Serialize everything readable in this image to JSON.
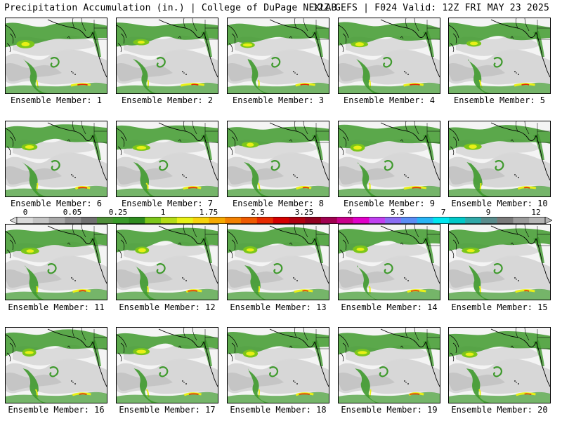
{
  "header": {
    "left_title": "Precipitation Accumulation (in.) | College of DuPage NEXLAB",
    "right_title": "12Z GEFS | F024 Valid: 12Z FRI MAY 23 2025"
  },
  "panels": [
    {
      "label": "Ensemble Member: 1",
      "member": 1
    },
    {
      "label": "Ensemble Member: 2",
      "member": 2
    },
    {
      "label": "Ensemble Member: 3",
      "member": 3
    },
    {
      "label": "Ensemble Member: 4",
      "member": 4
    },
    {
      "label": "Ensemble Member: 5",
      "member": 5
    },
    {
      "label": "Ensemble Member: 6",
      "member": 6
    },
    {
      "label": "Ensemble Member: 7",
      "member": 7
    },
    {
      "label": "Ensemble Member: 8",
      "member": 8
    },
    {
      "label": "Ensemble Member: 9",
      "member": 9
    },
    {
      "label": "Ensemble Member: 10",
      "member": 10
    },
    {
      "label": "Ensemble Member: 11",
      "member": 11
    },
    {
      "label": "Ensemble Member: 12",
      "member": 12
    },
    {
      "label": "Ensemble Member: 13",
      "member": 13
    },
    {
      "label": "Ensemble Member: 14",
      "member": 14
    },
    {
      "label": "Ensemble Member: 15",
      "member": 15
    },
    {
      "label": "Ensemble Member: 16",
      "member": 16
    },
    {
      "label": "Ensemble Member: 17",
      "member": 17
    },
    {
      "label": "Ensemble Member: 18",
      "member": 18
    },
    {
      "label": "Ensemble Member: 19",
      "member": 19
    },
    {
      "label": "Ensemble Member: 20",
      "member": 20
    }
  ],
  "colorbar": {
    "tick_labels": [
      "0",
      "0.05",
      "0.25",
      "1",
      "1.75",
      "2.5",
      "3.25",
      "4",
      "5.5",
      "7",
      "9",
      "12"
    ],
    "colors": [
      "#d9d9d9",
      "#c4c4c4",
      "#a8a8a8",
      "#8c8c8c",
      "#707070",
      "#4f8f3a",
      "#3a9a2a",
      "#2e8b1e",
      "#7cc61a",
      "#b4dc16",
      "#e8f016",
      "#f6d20c",
      "#f5a800",
      "#f28000",
      "#ee5a00",
      "#e62a00",
      "#d40000",
      "#b00010",
      "#900020",
      "#a00050",
      "#c8008a",
      "#e000c8",
      "#c040f0",
      "#8a6cf2",
      "#5a8cf5",
      "#28b4f5",
      "#00e6f0",
      "#00c8c8",
      "#30a8a8",
      "#5a8c8c",
      "#7a7a7a",
      "#9a9a9a",
      "#b4b4b4"
    ]
  }
}
